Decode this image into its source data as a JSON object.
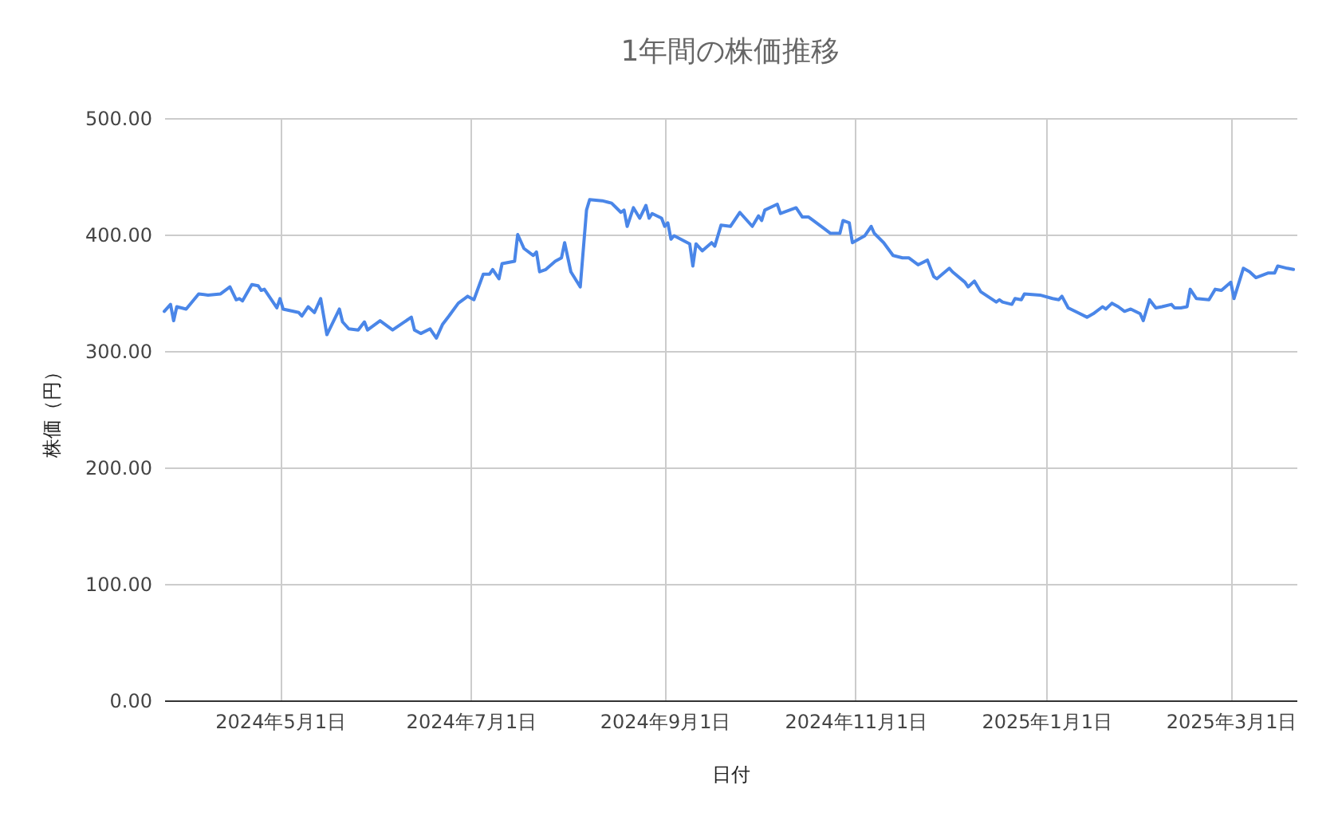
{
  "chart_data": {
    "type": "line",
    "title": "1年間の株価推移",
    "xlabel": "日付",
    "ylabel": "株価（円）",
    "x": [
      "2024-03-25",
      "2024-03-27",
      "2024-03-28",
      "2024-03-29",
      "2024-04-01",
      "2024-04-05",
      "2024-04-08",
      "2024-04-12",
      "2024-04-15",
      "2024-04-17",
      "2024-04-18",
      "2024-04-19",
      "2024-04-22",
      "2024-04-24",
      "2024-04-25",
      "2024-04-26",
      "2024-04-30",
      "2024-05-01",
      "2024-05-02",
      "2024-05-07",
      "2024-05-08",
      "2024-05-10",
      "2024-05-12",
      "2024-05-14",
      "2024-05-16",
      "2024-05-20",
      "2024-05-21",
      "2024-05-23",
      "2024-05-26",
      "2024-05-28",
      "2024-05-29",
      "2024-06-02",
      "2024-06-06",
      "2024-06-12",
      "2024-06-13",
      "2024-06-15",
      "2024-06-18",
      "2024-06-20",
      "2024-06-22",
      "2024-06-24",
      "2024-06-27",
      "2024-06-29",
      "2024-06-30",
      "2024-07-02",
      "2024-07-05",
      "2024-07-07",
      "2024-07-08",
      "2024-07-10",
      "2024-07-11",
      "2024-07-15",
      "2024-07-16",
      "2024-07-18",
      "2024-07-21",
      "2024-07-22",
      "2024-07-23",
      "2024-07-25",
      "2024-07-28",
      "2024-07-30",
      "2024-07-31",
      "2024-08-02",
      "2024-08-05",
      "2024-08-07",
      "2024-08-08",
      "2024-08-12",
      "2024-08-15",
      "2024-08-18",
      "2024-08-19",
      "2024-08-20",
      "2024-08-22",
      "2024-08-24",
      "2024-08-26",
      "2024-08-27",
      "2024-08-28",
      "2024-08-31",
      "2024-09-01",
      "2024-09-02",
      "2024-09-03",
      "2024-09-04",
      "2024-09-09",
      "2024-09-10",
      "2024-09-11",
      "2024-09-13",
      "2024-09-16",
      "2024-09-17",
      "2024-09-19",
      "2024-09-22",
      "2024-09-25",
      "2024-09-29",
      "2024-10-01",
      "2024-10-02",
      "2024-10-03",
      "2024-10-07",
      "2024-10-08",
      "2024-10-13",
      "2024-10-15",
      "2024-10-17",
      "2024-10-22",
      "2024-10-24",
      "2024-10-27",
      "2024-10-28",
      "2024-10-30",
      "2024-10-31",
      "2024-11-04",
      "2024-11-06",
      "2024-11-07",
      "2024-11-10",
      "2024-11-13",
      "2024-11-16",
      "2024-11-18",
      "2024-11-21",
      "2024-11-24",
      "2024-11-26",
      "2024-11-27",
      "2024-12-01",
      "2024-12-02",
      "2024-12-06",
      "2024-12-07",
      "2024-12-09",
      "2024-12-11",
      "2024-12-16",
      "2024-12-17",
      "2024-12-18",
      "2024-12-21",
      "2024-12-22",
      "2024-12-24",
      "2024-12-25",
      "2024-12-30",
      "2025-01-03",
      "2025-01-05",
      "2025-01-06",
      "2025-01-08",
      "2025-01-11",
      "2025-01-14",
      "2025-01-16",
      "2025-01-19",
      "2025-01-20",
      "2025-01-22",
      "2025-01-24",
      "2025-01-26",
      "2025-01-28",
      "2025-01-31",
      "2025-02-01",
      "2025-02-03",
      "2025-02-05",
      "2025-02-07",
      "2025-02-10",
      "2025-02-11",
      "2025-02-13",
      "2025-02-15",
      "2025-02-16",
      "2025-02-18",
      "2025-02-22",
      "2025-02-24",
      "2025-02-26",
      "2025-03-01",
      "2025-03-02",
      "2025-03-05",
      "2025-03-07",
      "2025-03-09",
      "2025-03-13",
      "2025-03-15",
      "2025-03-16",
      "2025-03-19",
      "2025-03-21"
    ],
    "series": [
      {
        "color": "#4a86e8",
        "values": [
          334,
          340,
          326,
          338,
          336,
          349,
          348,
          349,
          355,
          344,
          345,
          343,
          357,
          356,
          352,
          353,
          337,
          345,
          336,
          333,
          330,
          338,
          333,
          345,
          314,
          336,
          325,
          319,
          318,
          325,
          318,
          326,
          318,
          329,
          318,
          315,
          319,
          311,
          323,
          330,
          341,
          345,
          347,
          344,
          366,
          366,
          370,
          362,
          375,
          377,
          400,
          388,
          382,
          385,
          368,
          370,
          377,
          380,
          393,
          368,
          355,
          421,
          430,
          429,
          427,
          419,
          421,
          407,
          423,
          414,
          425,
          414,
          418,
          414,
          407,
          410,
          396,
          399,
          392,
          373,
          392,
          386,
          393,
          390,
          408,
          407,
          419,
          407,
          416,
          412,
          421,
          426,
          418,
          423,
          415,
          415,
          405,
          401,
          401,
          412,
          410,
          393,
          399,
          407,
          401,
          393,
          382,
          380,
          380,
          374,
          378,
          364,
          362,
          371,
          368,
          359,
          355,
          360,
          351,
          342,
          344,
          342,
          340,
          345,
          344,
          349,
          348,
          345,
          344,
          347,
          337,
          333,
          329,
          332,
          338,
          336,
          341,
          338,
          334,
          336,
          332,
          326,
          344,
          337,
          338,
          340,
          337,
          337,
          338,
          353,
          345,
          344,
          353,
          352,
          359,
          345,
          371,
          368,
          363,
          367,
          367,
          373,
          371,
          370
        ]
      }
    ],
    "xlim": [
      "2024-03-25",
      "2025-03-22"
    ],
    "xticks": [
      {
        "value": "2024-05-01",
        "label": "2024年5月1日"
      },
      {
        "value": "2024-07-01",
        "label": "2024年7月1日"
      },
      {
        "value": "2024-09-01",
        "label": "2024年9月1日"
      },
      {
        "value": "2024-11-01",
        "label": "2024年11月1日"
      },
      {
        "value": "2025-01-01",
        "label": "2025年1月1日"
      },
      {
        "value": "2025-03-01",
        "label": "2025年3月1日"
      }
    ],
    "ylim": [
      0,
      500
    ],
    "yticks": [
      {
        "value": 0,
        "label": "0.00"
      },
      {
        "value": 100,
        "label": "100.00"
      },
      {
        "value": 200,
        "label": "200.00"
      },
      {
        "value": 300,
        "label": "300.00"
      },
      {
        "value": 400,
        "label": "400.00"
      },
      {
        "value": 500,
        "label": "500.00"
      }
    ],
    "grid": true,
    "marker": "none",
    "line_style": "solid"
  }
}
